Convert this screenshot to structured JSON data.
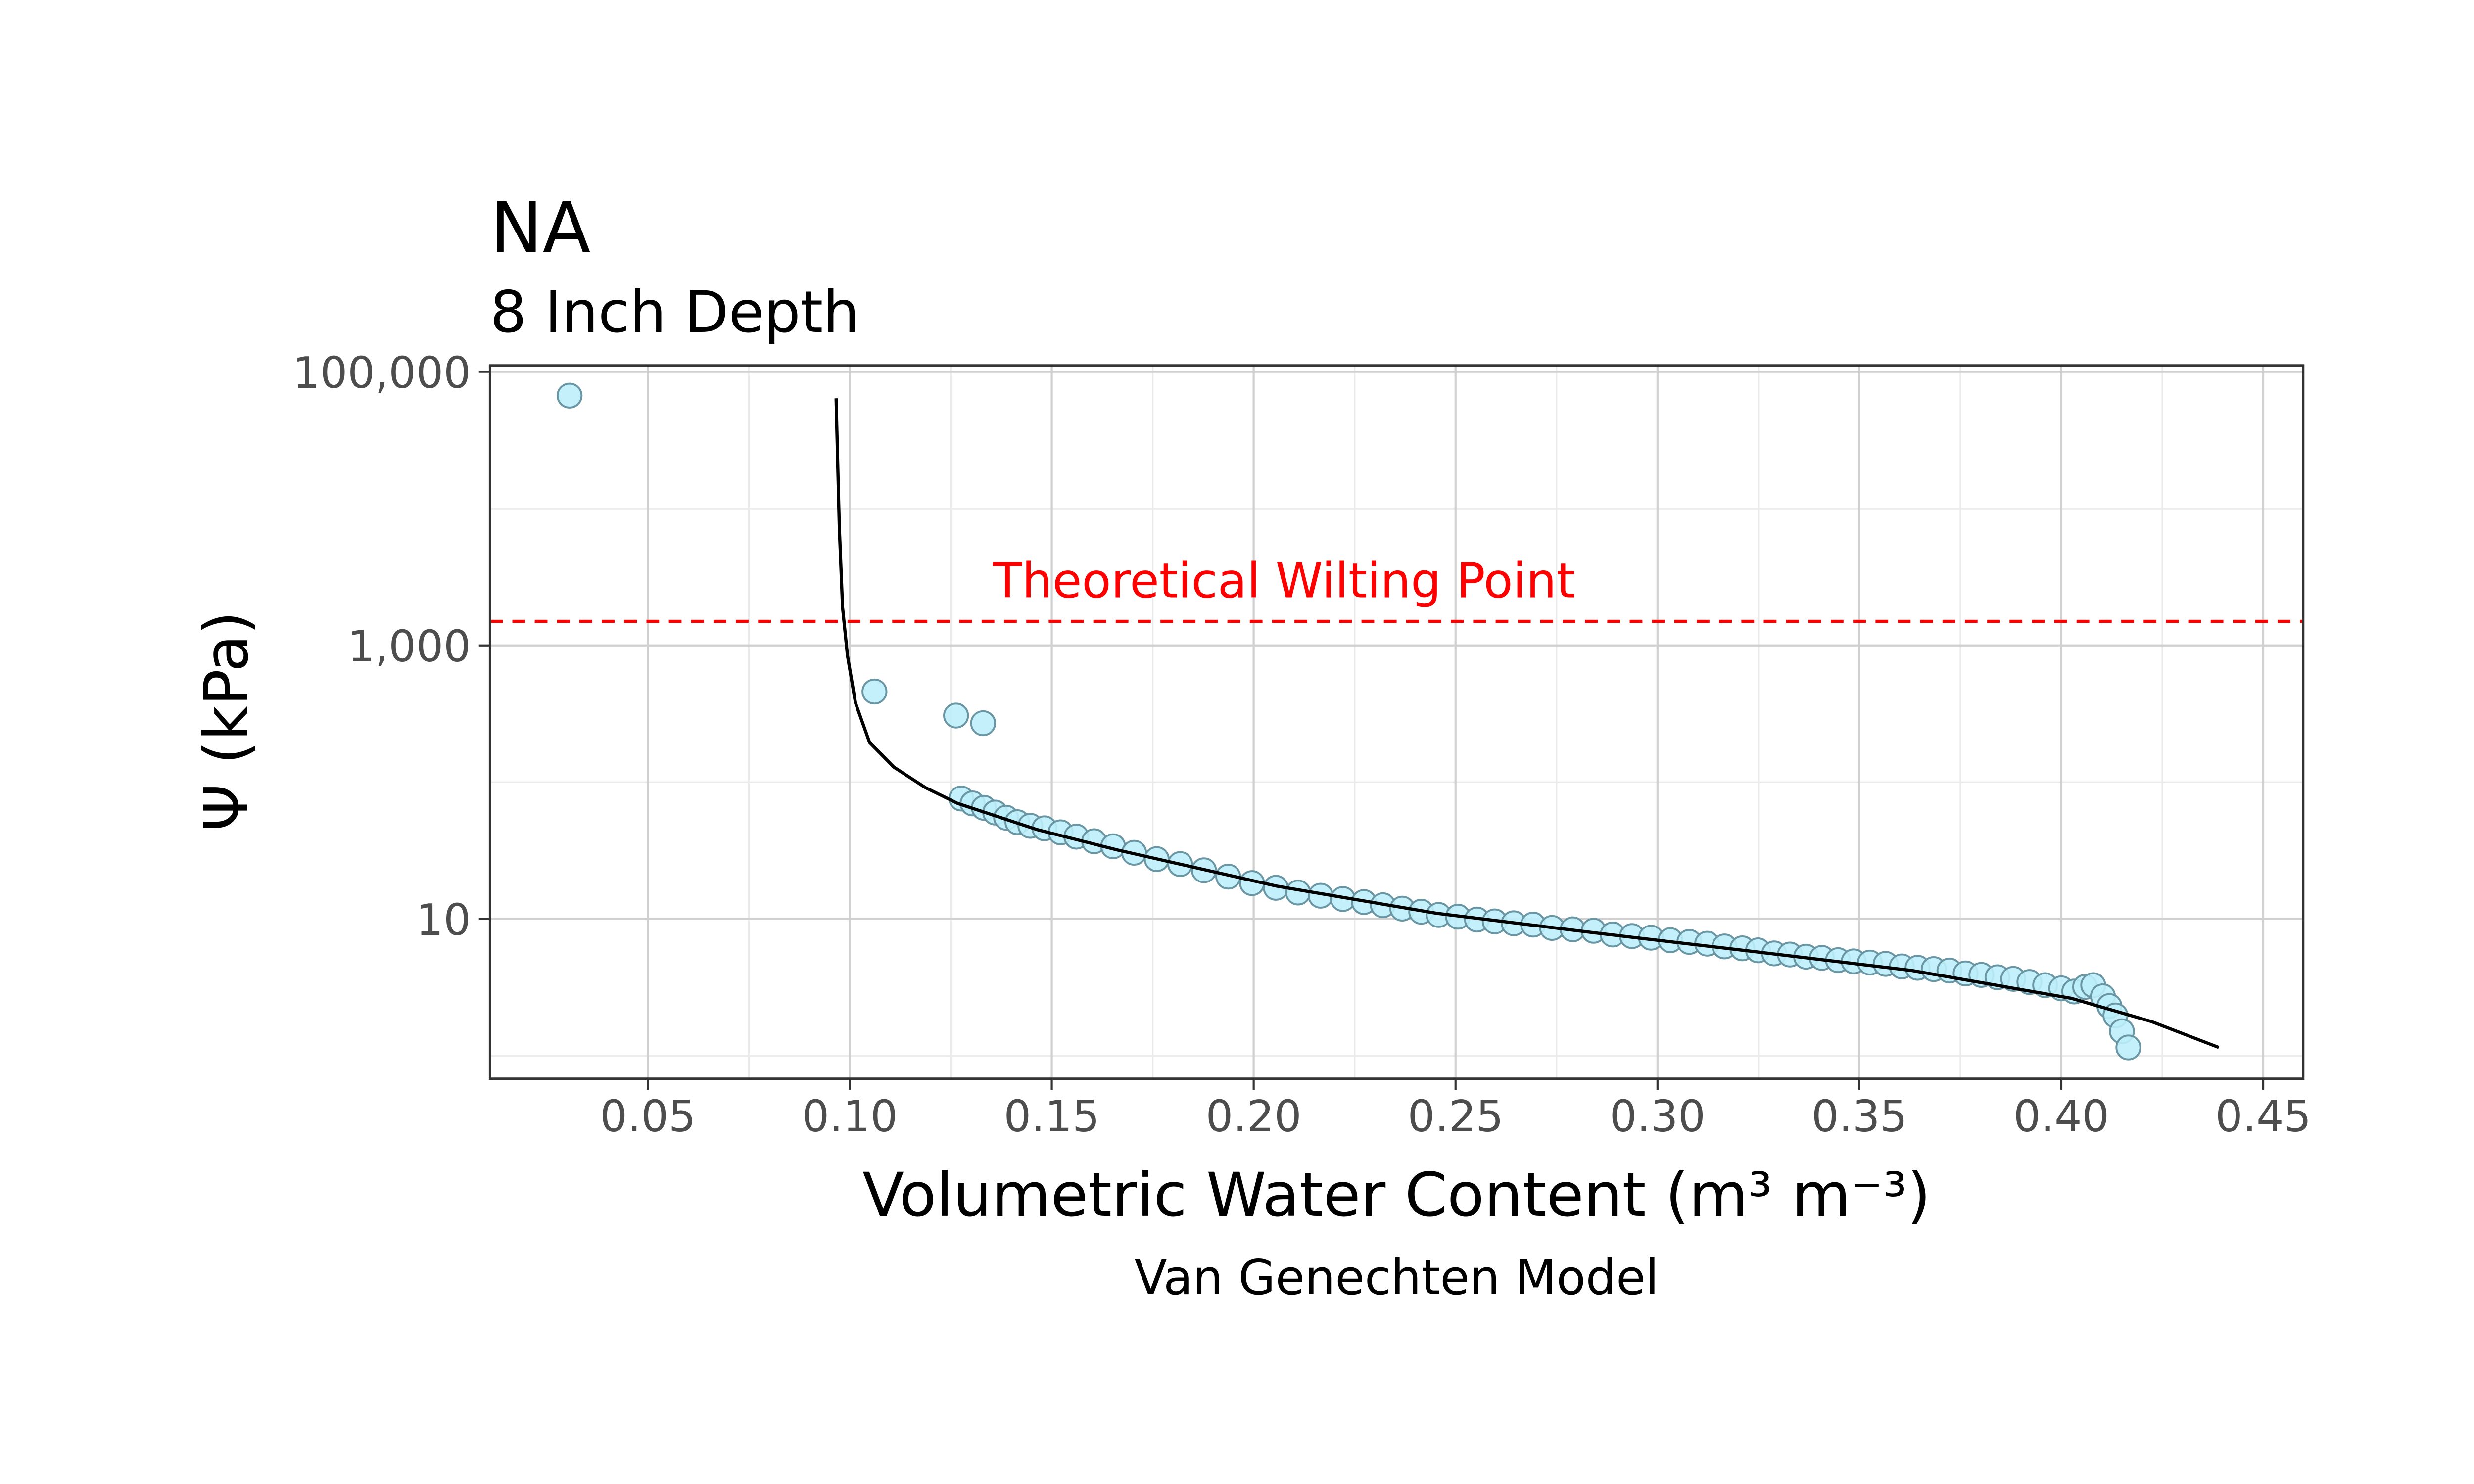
{
  "chart_data": {
    "type": "scatter",
    "title": "NA",
    "subtitle": "8 Inch Depth",
    "x_label": "Volumetric Water Content (m³ m⁻³)",
    "y_label": "Ψ (kPa)",
    "caption": "Van Genechten Model",
    "y_log": true,
    "grid": true,
    "xlim": [
      0.0109,
      0.4599
    ],
    "ylim": [
      0.68,
      111400
    ],
    "xticks": [
      0.05,
      {
        "value": 0.1,
        "label": "0.10"
      },
      0.15,
      {
        "value": 0.2,
        "label": "0.20"
      },
      0.25,
      {
        "value": 0.3,
        "label": "0.30"
      },
      0.35,
      {
        "value": 0.4,
        "label": "0.40"
      },
      0.45
    ],
    "yticks": [
      10,
      {
        "value": 1000,
        "label": "1,000"
      },
      {
        "value": 100000,
        "label": "100,000"
      }
    ],
    "xminor": [
      0.075,
      0.125,
      0.175,
      0.225,
      0.275,
      0.325,
      0.375,
      0.425
    ],
    "yminor": [
      1,
      100,
      10000
    ],
    "points": {
      "color": "#bdeefb",
      "edge_color": "#6a95a3",
      "x": [
        0.0306,
        0.1061,
        0.1263,
        0.133,
        0.1276,
        0.1304,
        0.1332,
        0.136,
        0.1387,
        0.1415,
        0.1447,
        0.1482,
        0.1522,
        0.1561,
        0.1605,
        0.1652,
        0.1704,
        0.176,
        0.1818,
        0.1877,
        0.1937,
        0.1996,
        0.2055,
        0.211,
        0.2166,
        0.2221,
        0.2273,
        0.232,
        0.2368,
        0.2415,
        0.2458,
        0.2506,
        0.2553,
        0.2597,
        0.2644,
        0.2692,
        0.2739,
        0.279,
        0.2842,
        0.2889,
        0.2937,
        0.2984,
        0.3032,
        0.3079,
        0.3123,
        0.3166,
        0.321,
        0.3249,
        0.3289,
        0.3328,
        0.3368,
        0.3407,
        0.3447,
        0.3486,
        0.3526,
        0.3565,
        0.3605,
        0.3644,
        0.3684,
        0.3723,
        0.3763,
        0.3802,
        0.3842,
        0.3881,
        0.3921,
        0.396,
        0.4,
        0.4032,
        0.4059,
        0.4079,
        0.4103,
        0.4119,
        0.4134,
        0.415,
        0.4166
      ],
      "y": [
        67000,
        460,
        307,
        270,
        76,
        70,
        65,
        60,
        55,
        51,
        48,
        46,
        43,
        40,
        37,
        34,
        30.5,
        27.4,
        25.2,
        22.7,
        20.4,
        18.3,
        16.9,
        15.6,
        14.8,
        14.0,
        13.3,
        12.6,
        11.9,
        11.3,
        10.7,
        10.4,
        9.9,
        9.6,
        9.3,
        9.1,
        8.6,
        8.4,
        8.2,
        7.7,
        7.5,
        7.3,
        7.0,
        6.8,
        6.6,
        6.3,
        6.1,
        5.9,
        5.6,
        5.5,
        5.3,
        5.2,
        5.0,
        4.9,
        4.8,
        4.7,
        4.5,
        4.4,
        4.3,
        4.2,
        4.0,
        3.9,
        3.75,
        3.65,
        3.46,
        3.28,
        3.11,
        2.95,
        3.19,
        3.28,
        2.72,
        2.31,
        1.97,
        1.51,
        1.15
      ]
    },
    "curve": {
      "color": "#000000",
      "x": [
        0.0966,
        0.0974,
        0.0982,
        0.0994,
        0.1014,
        0.1049,
        0.1109,
        0.1188,
        0.1267,
        0.1464,
        0.1662,
        0.2057,
        0.2453,
        0.2848,
        0.3234,
        0.363,
        0.4025,
        0.4223,
        0.439
      ],
      "y": [
        64000,
        7300,
        1900,
        850,
        380,
        195,
        129,
        91,
        70,
        45,
        32,
        17.4,
        11.0,
        7.9,
        5.8,
        4.2,
        2.63,
        1.78,
        1.15
      ]
    },
    "hline": {
      "value": 1500,
      "label": "Theoretical Wilting Point",
      "color": "#ff0000"
    }
  }
}
